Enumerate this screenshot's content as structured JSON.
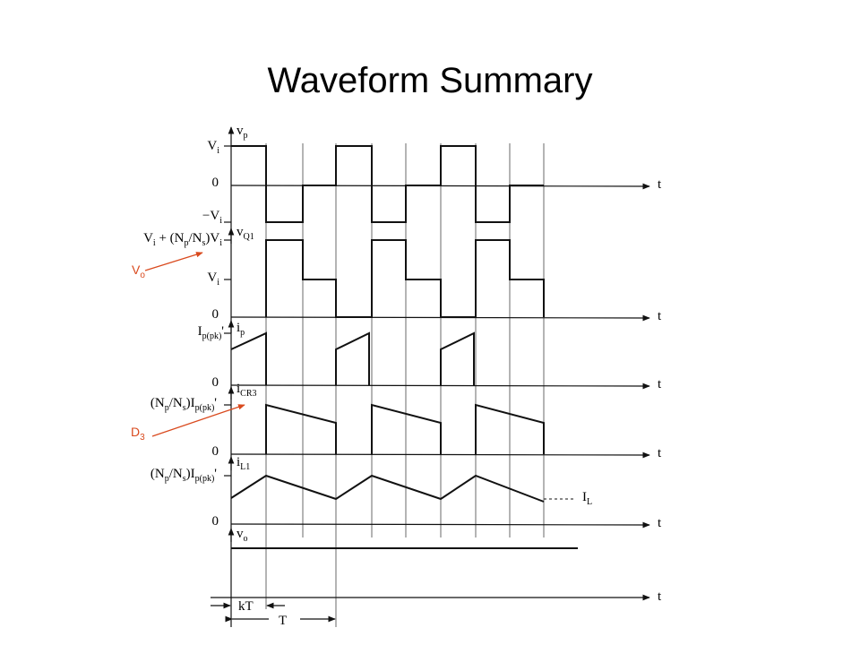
{
  "title": "Waveform Summary",
  "labels": [
    [
      "v",
      "p"
    ],
    [
      "V",
      "i"
    ],
    [
      "0"
    ],
    [
      "t"
    ],
    [
      "−V",
      "i"
    ],
    [
      "v",
      "Q1"
    ],
    [
      "V",
      "i",
      " + (N",
      "p",
      "/N",
      "s",
      ")V",
      "i"
    ],
    [
      "V",
      "i"
    ],
    [
      "0"
    ],
    [
      "t"
    ],
    [
      "I",
      "p(pk)",
      "'"
    ],
    [
      "i",
      "p"
    ],
    [
      "0"
    ],
    [
      "t"
    ],
    [
      "i",
      "CR3"
    ],
    [
      "(N",
      "p",
      "/N",
      "s",
      ")I",
      "p(pk)",
      "'"
    ],
    [
      "0"
    ],
    [
      "t"
    ],
    [
      "i",
      "L1"
    ],
    [
      "(N",
      "p",
      "/N",
      "s",
      ")I",
      "p(pk)",
      "'"
    ],
    [
      "I",
      "L"
    ],
    [
      "0"
    ],
    [
      "t"
    ],
    [
      "v",
      "o"
    ],
    [
      "t"
    ],
    [
      "kT"
    ],
    [
      "T"
    ]
  ],
  "annotations": [
    [
      "V",
      "o"
    ],
    [
      "D",
      "3"
    ]
  ]
}
